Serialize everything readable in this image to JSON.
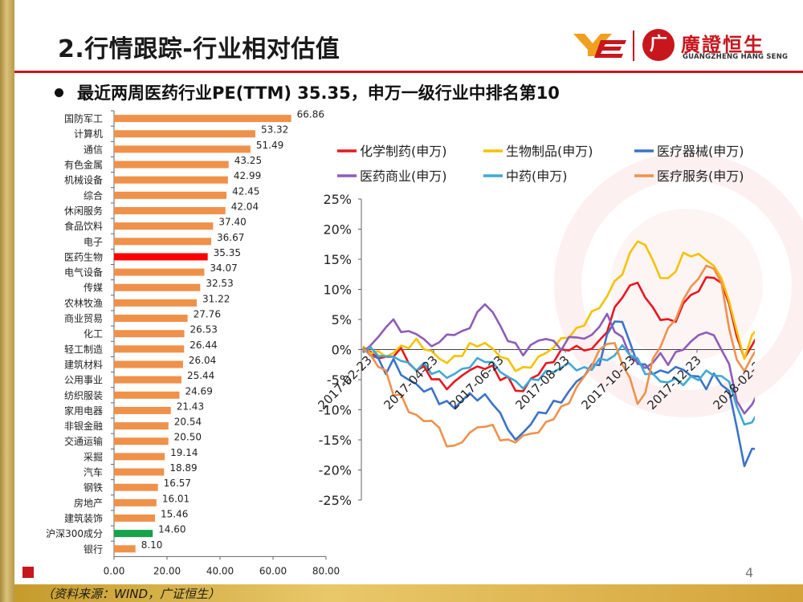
{
  "title": "2.行情跟踪-行业相对估值",
  "subtitle": "最近两周医药行业PE(TTM) 35.35，申万一级行业中排名第10",
  "logo": {
    "cn": "廣證恒生",
    "en": "GUANGZHENG HANG SENG",
    "mark": "YE",
    "seal_char": "广"
  },
  "source": "（资料来源：WIND，广证恒生）",
  "page_number": "4",
  "colors": {
    "accent": "#c8161d",
    "bar": "#f0914a",
    "bar_highlight": "#ff0000",
    "bar_benchmark": "#16a34a"
  },
  "chart_data": [
    {
      "type": "bar",
      "orientation": "horizontal",
      "title": "",
      "categories": [
        "国防军工",
        "计算机",
        "通信",
        "有色金属",
        "机械设备",
        "综合",
        "休闲服务",
        "食品饮料",
        "电子",
        "医药生物",
        "电气设备",
        "传媒",
        "农林牧渔",
        "商业贸易",
        "化工",
        "轻工制造",
        "建筑材料",
        "公用事业",
        "纺织服装",
        "家用电器",
        "非银金融",
        "交通运输",
        "采掘",
        "汽车",
        "钢铁",
        "房地产",
        "建筑装饰",
        "沪深300成分",
        "银行"
      ],
      "values": [
        66.86,
        53.32,
        51.49,
        43.25,
        42.99,
        42.45,
        42.04,
        37.4,
        36.67,
        35.35,
        34.07,
        32.53,
        31.22,
        27.76,
        26.53,
        26.44,
        26.04,
        25.44,
        24.69,
        21.43,
        20.54,
        20.5,
        19.14,
        18.89,
        16.57,
        16.01,
        15.46,
        14.6,
        8.1
      ],
      "value_labels": [
        "66.86",
        "53.32",
        "51.49",
        "43.25",
        "42.99",
        "42.45",
        "42.04",
        "37.40",
        "36.67",
        "35.35",
        "34.07",
        "32.53",
        "31.22",
        "27.76",
        "26.53",
        "26.44",
        "26.04",
        "25.44",
        "24.69",
        "21.43",
        "20.54",
        "20.50",
        "19.14",
        "18.89",
        "16.57",
        "16.01",
        "15.46",
        "14.60",
        "8.10"
      ],
      "highlight": "医药生物",
      "benchmark": "沪深300成分",
      "xlim": [
        0,
        80
      ],
      "xticks": [
        "0.00",
        "20.00",
        "40.00",
        "60.00",
        "80.00"
      ]
    },
    {
      "type": "line",
      "title": "",
      "ylim": [
        -25,
        25
      ],
      "yticks": [
        "25%",
        "20%",
        "15%",
        "10%",
        "5%",
        "0%",
        "-5%",
        "-10%",
        "-15%",
        "-20%",
        "-25%"
      ],
      "xticks": [
        "2017-02-23",
        "2017-04-23",
        "2017-06-23",
        "2017-08-23",
        "2017-10-23",
        "2017-12-23",
        "2018-02-23"
      ],
      "legend_position": "top",
      "series": [
        {
          "name": "化学制药(申万)",
          "color": "#e8161f",
          "values": [
            0,
            -0.6,
            -1.0,
            -1.8,
            -0.6,
            -0.2,
            -2.0,
            -3.5,
            -3.0,
            -4.5,
            -5.5,
            -6.0,
            -5.8,
            -4.0,
            -3.5,
            -3.0,
            -2.8,
            -3.2,
            -4.5,
            -5.0,
            -6.5,
            -7.0,
            -5.0,
            -3.8,
            -2.8,
            -1.5,
            -0.5,
            0.2,
            0.5,
            -0.3,
            0.5,
            1.0,
            3.5,
            6.5,
            9.0,
            10.5,
            11.0,
            9.0,
            6.5,
            5.5,
            4.5,
            5.0,
            7.5,
            9.0,
            10.0,
            11.5,
            12.5,
            10.5,
            8.0,
            2.0,
            -1.5,
            1.0,
            2.5
          ]
        },
        {
          "name": "生物制品(申万)",
          "color": "#f5c200",
          "values": [
            0,
            -0.2,
            -0.5,
            -1.2,
            -0.3,
            0.2,
            0.8,
            1.2,
            0.5,
            -0.5,
            -1.5,
            -2.0,
            -1.5,
            -0.5,
            0.5,
            1.0,
            0.8,
            0.2,
            -1.0,
            -2.0,
            -3.0,
            -3.5,
            -2.5,
            -1.5,
            -0.5,
            0.5,
            1.5,
            2.5,
            3.0,
            4.5,
            6.0,
            7.0,
            9.0,
            11.0,
            13.0,
            15.5,
            18.5,
            17.0,
            15.0,
            12.0,
            11.5,
            13.5,
            15.5,
            16.0,
            15.5,
            15.0,
            14.0,
            11.5,
            8.5,
            2.5,
            -1.0,
            2.0,
            4.0
          ]
        },
        {
          "name": "医疗器械(申万)",
          "color": "#3b73c9",
          "values": [
            0,
            -0.5,
            -2.0,
            -3.5,
            -2.0,
            -4.0,
            -5.0,
            -6.0,
            -6.5,
            -7.0,
            -8.5,
            -9.0,
            -9.5,
            -8.5,
            -7.5,
            -8.0,
            -8.0,
            -8.5,
            -11.0,
            -13.0,
            -15.0,
            -14.0,
            -12.0,
            -11.0,
            -10.0,
            -9.0,
            -8.5,
            -7.0,
            -5.5,
            -4.0,
            -3.0,
            -2.0,
            2.0,
            5.0,
            4.5,
            1.0,
            -2.0,
            -3.0,
            -3.5,
            -4.0,
            -3.5,
            -3.0,
            -3.5,
            -4.0,
            -5.0,
            -6.0,
            -4.5,
            -5.5,
            -7.0,
            -13.0,
            -19.0,
            -17.0,
            -16.0
          ]
        },
        {
          "name": "医药商业(申万)",
          "color": "#8e5cb8",
          "values": [
            0,
            0.5,
            2.0,
            4.0,
            4.5,
            3.5,
            2.5,
            3.0,
            1.5,
            0.5,
            1.5,
            2.0,
            3.0,
            2.5,
            4.0,
            6.0,
            7.5,
            6.5,
            3.5,
            2.0,
            0.5,
            -0.5,
            0.5,
            1.5,
            2.0,
            1.0,
            0.5,
            1.5,
            2.5,
            1.5,
            2.5,
            4.0,
            5.5,
            3.5,
            1.5,
            -0.5,
            -2.5,
            -3.0,
            -2.0,
            -1.0,
            -2.0,
            -1.0,
            0.5,
            1.0,
            2.5,
            3.0,
            2.0,
            0.5,
            -3.0,
            -8.0,
            -11.0,
            -9.0,
            -6.5
          ]
        },
        {
          "name": "中药(申万)",
          "color": "#3fa9d4",
          "values": [
            0,
            -0.2,
            -0.5,
            -1.5,
            -1.0,
            -1.8,
            -2.5,
            -3.0,
            -2.8,
            -3.5,
            -4.0,
            -4.5,
            -4.0,
            -3.5,
            -2.5,
            -2.0,
            -1.5,
            -2.5,
            -3.5,
            -4.5,
            -5.5,
            -6.0,
            -5.5,
            -4.5,
            -4.0,
            -3.5,
            -3.0,
            -2.5,
            -3.0,
            -3.5,
            -2.8,
            -2.0,
            -1.5,
            -1.0,
            0.5,
            -0.5,
            -2.0,
            -3.5,
            -4.5,
            -5.0,
            -5.5,
            -5.0,
            -5.5,
            -5.0,
            -4.5,
            -4.0,
            -4.0,
            -4.5,
            -5.5,
            -9.0,
            -13.0,
            -11.5,
            -10.5
          ]
        },
        {
          "name": "医疗服务(申万)",
          "color": "#f0914a",
          "values": [
            0,
            -1.0,
            -2.5,
            -4.0,
            -7.0,
            -8.0,
            -10.0,
            -11.0,
            -12.0,
            -11.5,
            -13.5,
            -15.5,
            -16.5,
            -15.0,
            -14.0,
            -13.0,
            -12.5,
            -13.0,
            -14.5,
            -15.5,
            -15.0,
            -14.5,
            -14.0,
            -13.5,
            -12.5,
            -11.0,
            -10.0,
            -8.5,
            -6.5,
            -4.5,
            -2.5,
            -0.5,
            1.5,
            0.5,
            -2.0,
            -5.0,
            -9.0,
            -7.0,
            -2.0,
            1.0,
            3.0,
            5.5,
            8.0,
            10.5,
            12.0,
            13.5,
            14.0,
            10.5,
            4.0,
            -2.0,
            -3.5,
            -1.0,
            0.5
          ]
        }
      ]
    }
  ]
}
